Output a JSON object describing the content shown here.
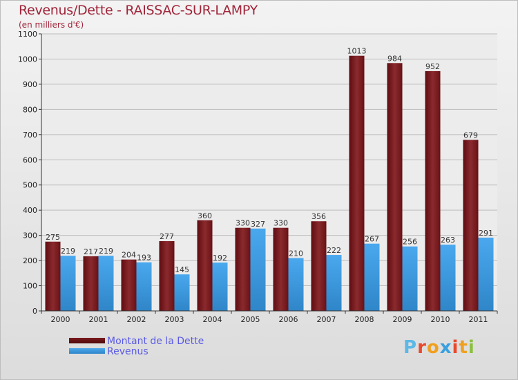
{
  "chart_data": {
    "type": "bar",
    "title": "Revenus/Dette - RAISSAC-SUR-LAMPY",
    "subtitle": "(en milliers d'€)",
    "categories": [
      "2000",
      "2001",
      "2002",
      "2003",
      "2004",
      "2005",
      "2006",
      "2007",
      "2008",
      "2009",
      "2010",
      "2011"
    ],
    "series": [
      {
        "name": "Montant de la Dette",
        "color": "#7a1a1e",
        "values": [
          275,
          217,
          204,
          277,
          360,
          330,
          330,
          356,
          1013,
          984,
          952,
          679
        ]
      },
      {
        "name": "Revenus",
        "color": "#3a9ee4",
        "values": [
          219,
          219,
          193,
          145,
          192,
          327,
          210,
          222,
          267,
          256,
          263,
          291
        ]
      }
    ],
    "ylim": [
      0,
      1100
    ],
    "yticks": [
      0,
      100,
      200,
      300,
      400,
      500,
      600,
      700,
      800,
      900,
      1000,
      1100
    ],
    "grid": true,
    "legend": "bottom-left"
  },
  "legend": {
    "dette": "Montant de la Dette",
    "revenus": "Revenus"
  },
  "logo": {
    "letters": [
      "P",
      "r",
      "o",
      "x",
      "i",
      "t",
      "i"
    ],
    "colors": [
      "#5cb8e6",
      "#e8492c",
      "#f0a020",
      "#3aa0e0",
      "#e8492c",
      "#f0a020",
      "#8ac040"
    ]
  }
}
